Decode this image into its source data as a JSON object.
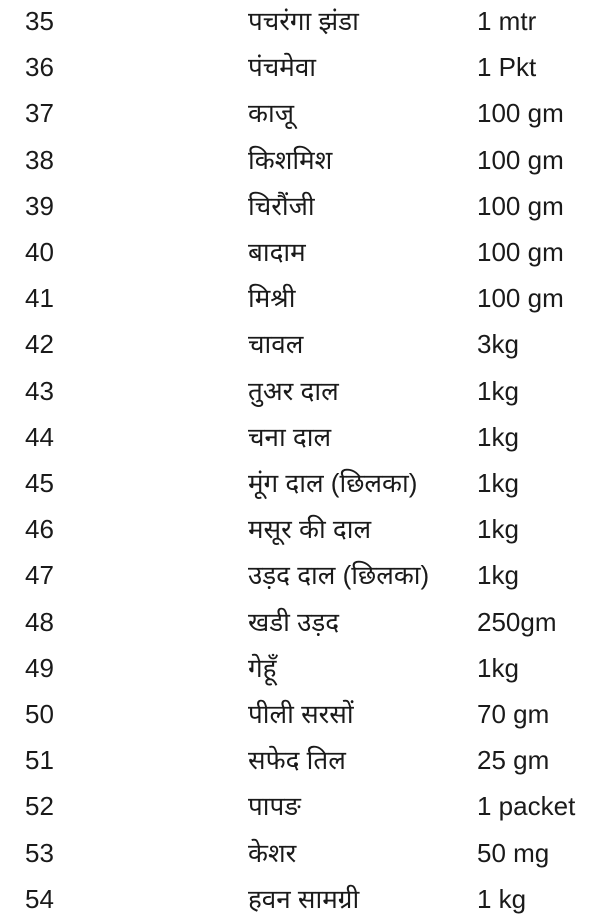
{
  "items": [
    {
      "num": "35",
      "name": "पचरंगा झंडा",
      "qty": "1 mtr"
    },
    {
      "num": "36",
      "name": "पंचमेवा",
      "qty": "1 Pkt"
    },
    {
      "num": "37",
      "name": "काजू",
      "qty": "100 gm"
    },
    {
      "num": "38",
      "name": "किशमिश",
      "qty": "100 gm"
    },
    {
      "num": "39",
      "name": "चिरौंजी",
      "qty": "100 gm"
    },
    {
      "num": "40",
      "name": "बादाम",
      "qty": "100 gm"
    },
    {
      "num": "41",
      "name": "मिश्री",
      "qty": "100 gm"
    },
    {
      "num": "42",
      "name": "चावल",
      "qty": "3kg"
    },
    {
      "num": "43",
      "name": "तुअर दाल",
      "qty": "1kg"
    },
    {
      "num": "44",
      "name": "चना दाल",
      "qty": "1kg"
    },
    {
      "num": "45",
      "name": "मूंग दाल (छिलका)",
      "qty": "1kg"
    },
    {
      "num": "46",
      "name": "मसूर की दाल",
      "qty": "1kg"
    },
    {
      "num": "47",
      "name": "उड़द दाल (छिलका)",
      "qty": "1kg"
    },
    {
      "num": "48",
      "name": "खडी उड़द",
      "qty": "250gm"
    },
    {
      "num": "49",
      "name": "गेहूँ",
      "qty": "1kg"
    },
    {
      "num": "50",
      "name": "पीली सरसों",
      "qty": "70 gm"
    },
    {
      "num": "51",
      "name": "सफेद तिल",
      "qty": "25 gm"
    },
    {
      "num": "52",
      "name": "पापङ",
      "qty": "1 packet"
    },
    {
      "num": "53",
      "name": "केशर",
      "qty": "50 mg"
    },
    {
      "num": "54",
      "name": "हवन सामग्री",
      "qty": "1  kg"
    }
  ]
}
